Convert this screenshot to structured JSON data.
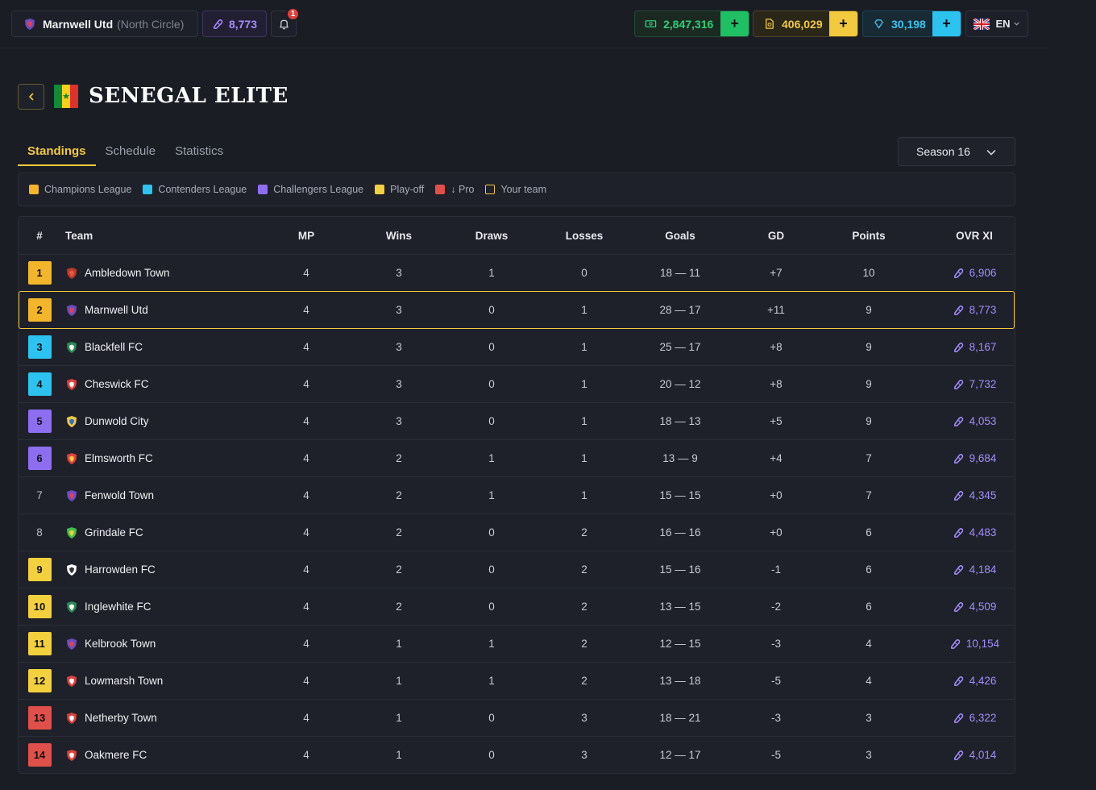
{
  "header": {
    "club_name": "Marnwell Utd",
    "club_region": "(North Circle)",
    "club_ovr": "8,773",
    "notifications": "1",
    "cash": "2,847,316",
    "coins": "406,029",
    "gems": "30,198",
    "plus": "+",
    "language": "EN"
  },
  "league": {
    "title": "SENEGAL ELITE",
    "tabs": [
      "Standings",
      "Schedule",
      "Statistics"
    ],
    "season": "Season 16"
  },
  "legend": [
    {
      "label": "Champions League",
      "color": "#f3b62b"
    },
    {
      "label": "Contenders League",
      "color": "#2cc3f0"
    },
    {
      "label": "Challengers League",
      "color": "#8d6ef0"
    },
    {
      "label": "Play-off",
      "color": "#f3d03d"
    },
    {
      "label": "↓ Pro",
      "color": "#e0504a"
    },
    {
      "label": "Your team",
      "color": "outline"
    }
  ],
  "table": {
    "columns": [
      "#",
      "Team",
      "MP",
      "Wins",
      "Draws",
      "Losses",
      "Goals",
      "GD",
      "Points",
      "OVR XI"
    ],
    "rows": [
      {
        "rank": "1",
        "zone": "#f3b62b",
        "team": "Ambledown Town",
        "crest": [
          "#c0392b",
          "#e85a3a"
        ],
        "mp": "4",
        "w": "3",
        "d": "1",
        "l": "0",
        "goals": "18 — 11",
        "gd": "+7",
        "pts": "10",
        "ovr": "6,906"
      },
      {
        "rank": "2",
        "zone": "#f3b62b",
        "team": "Marnwell Utd",
        "crest": [
          "#6b4cc2",
          "#e0405a"
        ],
        "mp": "4",
        "w": "3",
        "d": "0",
        "l": "1",
        "goals": "28 — 17",
        "gd": "+11",
        "pts": "9",
        "ovr": "8,773",
        "yours": true
      },
      {
        "rank": "3",
        "zone": "#2cc3f0",
        "team": "Blackfell FC",
        "crest": [
          "#2e8b57",
          "#ffffff"
        ],
        "mp": "4",
        "w": "3",
        "d": "0",
        "l": "1",
        "goals": "25 — 17",
        "gd": "+8",
        "pts": "9",
        "ovr": "8,167"
      },
      {
        "rank": "4",
        "zone": "#2cc3f0",
        "team": "Cheswick FC",
        "crest": [
          "#e0403c",
          "#ffffff"
        ],
        "mp": "4",
        "w": "3",
        "d": "0",
        "l": "1",
        "goals": "20 — 12",
        "gd": "+8",
        "pts": "9",
        "ovr": "7,732"
      },
      {
        "rank": "5",
        "zone": "#8d6ef0",
        "team": "Dunwold City",
        "crest": [
          "#f3c93d",
          "#2a6fd6"
        ],
        "mp": "4",
        "w": "3",
        "d": "0",
        "l": "1",
        "goals": "18 — 13",
        "gd": "+5",
        "pts": "9",
        "ovr": "4,053"
      },
      {
        "rank": "6",
        "zone": "#8d6ef0",
        "team": "Elmsworth FC",
        "crest": [
          "#e0403c",
          "#f3c93d"
        ],
        "mp": "4",
        "w": "2",
        "d": "1",
        "l": "1",
        "goals": "13 — 9",
        "gd": "+4",
        "pts": "7",
        "ovr": "9,684"
      },
      {
        "rank": "7",
        "zone": "",
        "team": "Fenwold Town",
        "crest": [
          "#6b4cc2",
          "#e0405a"
        ],
        "mp": "4",
        "w": "2",
        "d": "1",
        "l": "1",
        "goals": "15 — 15",
        "gd": "+0",
        "pts": "7",
        "ovr": "4,345"
      },
      {
        "rank": "8",
        "zone": "",
        "team": "Grindale FC",
        "crest": [
          "#3fbf4a",
          "#f3c93d"
        ],
        "mp": "4",
        "w": "2",
        "d": "0",
        "l": "2",
        "goals": "16 — 16",
        "gd": "+0",
        "pts": "6",
        "ovr": "4,483"
      },
      {
        "rank": "9",
        "zone": "#f3d03d",
        "team": "Harrowden FC",
        "crest": [
          "#ffffff",
          "#333333"
        ],
        "mp": "4",
        "w": "2",
        "d": "0",
        "l": "2",
        "goals": "15 — 16",
        "gd": "-1",
        "pts": "6",
        "ovr": "4,184"
      },
      {
        "rank": "10",
        "zone": "#f3d03d",
        "team": "Inglewhite FC",
        "crest": [
          "#2e8b57",
          "#ffffff"
        ],
        "mp": "4",
        "w": "2",
        "d": "0",
        "l": "2",
        "goals": "13 — 15",
        "gd": "-2",
        "pts": "6",
        "ovr": "4,509"
      },
      {
        "rank": "11",
        "zone": "#f3d03d",
        "team": "Kelbrook Town",
        "crest": [
          "#6b4cc2",
          "#e0405a"
        ],
        "mp": "4",
        "w": "1",
        "d": "1",
        "l": "2",
        "goals": "12 — 15",
        "gd": "-3",
        "pts": "4",
        "ovr": "10,154"
      },
      {
        "rank": "12",
        "zone": "#f3d03d",
        "team": "Lowmarsh Town",
        "crest": [
          "#e0403c",
          "#ffffff"
        ],
        "mp": "4",
        "w": "1",
        "d": "1",
        "l": "2",
        "goals": "13 — 18",
        "gd": "-5",
        "pts": "4",
        "ovr": "4,426"
      },
      {
        "rank": "13",
        "zone": "#e0504a",
        "team": "Netherby Town",
        "crest": [
          "#e0403c",
          "#ffffff"
        ],
        "mp": "4",
        "w": "1",
        "d": "0",
        "l": "3",
        "goals": "18 — 21",
        "gd": "-3",
        "pts": "3",
        "ovr": "6,322"
      },
      {
        "rank": "14",
        "zone": "#e0504a",
        "team": "Oakmere FC",
        "crest": [
          "#e0403c",
          "#ffffff"
        ],
        "mp": "4",
        "w": "1",
        "d": "0",
        "l": "3",
        "goals": "12 — 17",
        "gd": "-5",
        "pts": "3",
        "ovr": "4,014"
      }
    ]
  }
}
